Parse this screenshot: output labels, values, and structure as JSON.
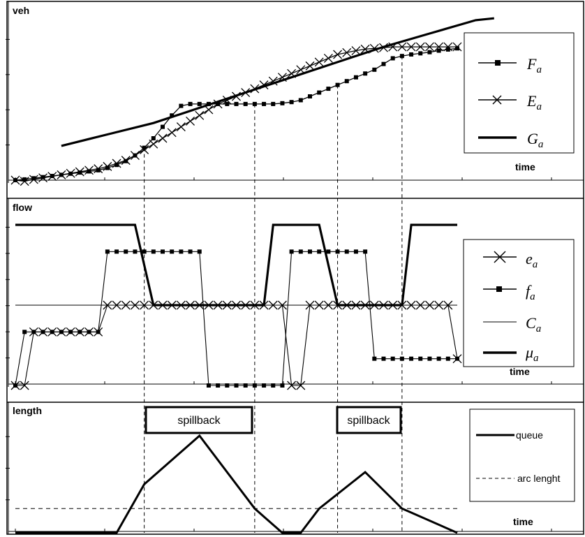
{
  "chart_data": [
    {
      "type": "line",
      "ylabel": "veh",
      "xlabel": "time",
      "legend": {
        "placement": "right",
        "entries": [
          {
            "letter": "F",
            "sub": "a",
            "marker": "square"
          },
          {
            "letter": "E",
            "sub": "a",
            "marker": "x"
          },
          {
            "letter": "G",
            "sub": "a",
            "marker": "none"
          }
        ]
      },
      "series": [
        {
          "name": "Fa",
          "marker": "square",
          "x": [
            0,
            1,
            2,
            3,
            4,
            5,
            6,
            7,
            8,
            9,
            10,
            11,
            12,
            13,
            14,
            15,
            16,
            17,
            18,
            19,
            20,
            21,
            22,
            23,
            24,
            25,
            26,
            27,
            28,
            29,
            30,
            31,
            32,
            33,
            34,
            35,
            36,
            37,
            38,
            39,
            40,
            41,
            42,
            43,
            44,
            45,
            46,
            47,
            48
          ],
          "y": [
            0,
            0.2,
            0.5,
            0.8,
            1.1,
            1.4,
            1.7,
            2.0,
            2.3,
            2.6,
            3.2,
            4.0,
            5.0,
            6.5,
            8.5,
            11.0,
            14.0,
            17.0,
            19.5,
            20,
            20,
            20,
            20,
            20,
            20,
            20,
            20,
            20,
            20,
            20.2,
            20.5,
            21,
            22,
            23,
            24,
            25,
            26,
            27,
            28,
            29,
            30.5,
            32,
            32.6,
            33,
            33.3,
            33.6,
            34,
            34.3,
            34.6
          ]
        },
        {
          "name": "Ea",
          "marker": "x",
          "x": [
            0,
            1,
            2,
            3,
            4,
            5,
            6,
            7,
            8,
            9,
            10,
            11,
            12,
            13,
            14,
            15,
            16,
            17,
            18,
            19,
            20,
            21,
            22,
            23,
            24,
            25,
            26,
            27,
            28,
            29,
            30,
            31,
            32,
            33,
            34,
            35,
            36,
            37,
            38,
            39,
            40,
            41,
            42,
            43,
            44,
            45,
            46,
            47,
            48
          ],
          "y": [
            0,
            -0.3,
            0.2,
            0.6,
            1.0,
            1.4,
            1.8,
            2.2,
            2.6,
            3.0,
            3.6,
            4.4,
            5.2,
            6.5,
            8,
            9.5,
            11,
            12.5,
            14,
            15.5,
            17,
            18.5,
            20,
            21,
            22,
            23,
            24,
            25,
            26,
            27,
            28,
            29,
            30,
            31,
            32,
            33,
            33.5,
            34,
            34.4,
            34.6,
            34.8,
            35,
            35,
            35,
            35,
            35,
            35,
            35,
            35
          ]
        },
        {
          "name": "Ga",
          "marker": "none",
          "x": [
            5,
            10,
            15,
            20,
            25,
            30,
            35,
            40,
            45,
            50,
            52
          ],
          "y": [
            9,
            12,
            15,
            19,
            23,
            27,
            31,
            35,
            38.5,
            42,
            42.5
          ]
        }
      ]
    },
    {
      "type": "line",
      "ylabel": "flow",
      "xlabel": "time",
      "legend": {
        "placement": "right",
        "entries": [
          {
            "letter": "e",
            "sub": "a",
            "marker": "x"
          },
          {
            "letter": "f",
            "sub": "a",
            "marker": "square"
          },
          {
            "letter": "C",
            "sub": "a",
            "marker": "thin"
          },
          {
            "letter": "μ",
            "sub": "a",
            "marker": "thick"
          }
        ]
      },
      "y_levels": {
        "mu_high": 6,
        "f_high": 5,
        "capacity": 3,
        "f_mid": 2,
        "f_low": 1,
        "zero": 0
      },
      "series": [
        {
          "name": "ea",
          "marker": "x",
          "x": [
            0,
            1,
            2,
            3,
            4,
            5,
            6,
            7,
            8,
            9,
            10,
            11,
            12,
            13,
            14,
            15,
            16,
            17,
            18,
            19,
            20,
            21,
            22,
            23,
            24,
            25,
            26,
            27,
            28,
            29,
            30,
            31,
            32,
            33,
            34,
            35,
            36,
            37,
            38,
            39,
            40,
            41,
            42,
            43,
            44,
            45,
            46,
            47,
            48
          ],
          "y": [
            0,
            0,
            2,
            2,
            2,
            2,
            2,
            2,
            2,
            2,
            3,
            3,
            3,
            3,
            3,
            3,
            3,
            3,
            3,
            3,
            3,
            3,
            3,
            3,
            3,
            3,
            3,
            3,
            3,
            3,
            0,
            0,
            3,
            3,
            3,
            3,
            3,
            3,
            3,
            3,
            3,
            3,
            3,
            3,
            3,
            3,
            3,
            3,
            1
          ]
        },
        {
          "name": "fa",
          "marker": "square",
          "x": [
            0,
            1,
            2,
            3,
            4,
            5,
            6,
            7,
            8,
            9,
            10,
            11,
            12,
            13,
            14,
            15,
            16,
            17,
            18,
            19,
            20,
            21,
            22,
            23,
            24,
            25,
            26,
            27,
            28,
            29,
            30,
            31,
            32,
            33,
            34,
            35,
            36,
            37,
            38,
            39,
            40,
            41,
            42,
            43,
            44,
            45,
            46,
            47,
            48
          ],
          "y": [
            0,
            2,
            2,
            2,
            2,
            2,
            2,
            2,
            2,
            2,
            5,
            5,
            5,
            5,
            5,
            5,
            5,
            5,
            5,
            5,
            5,
            0,
            0,
            0,
            0,
            0,
            0,
            0,
            0,
            0,
            5,
            5,
            5,
            5,
            5,
            5,
            5,
            5,
            5,
            1,
            1,
            1,
            1,
            1,
            1,
            1,
            1,
            1,
            1
          ]
        },
        {
          "name": "Ca",
          "marker": "thin",
          "x": [
            0,
            48
          ],
          "y": [
            3,
            3
          ]
        },
        {
          "name": "μa",
          "marker": "thick",
          "x": [
            0,
            13,
            15,
            27,
            28,
            33,
            35,
            42,
            43,
            48
          ],
          "y": [
            6,
            6,
            3,
            3,
            6,
            6,
            3,
            3,
            6,
            6
          ]
        }
      ]
    },
    {
      "type": "line",
      "ylabel": "length",
      "xlabel": "time",
      "legend": {
        "placement": "right",
        "entries": [
          "queue",
          "arc lenght"
        ]
      },
      "annotations": [
        "spillback",
        "spillback"
      ],
      "series": [
        {
          "name": "queue",
          "x": [
            0,
            11,
            14,
            20,
            26,
            29,
            31,
            33,
            38,
            42,
            48
          ],
          "y": [
            0,
            0,
            2,
            4,
            1,
            0,
            0,
            1,
            2.5,
            1,
            0
          ]
        },
        {
          "name": "arc lenght",
          "x": [
            0,
            48
          ],
          "y": [
            1,
            1
          ]
        }
      ]
    }
  ]
}
